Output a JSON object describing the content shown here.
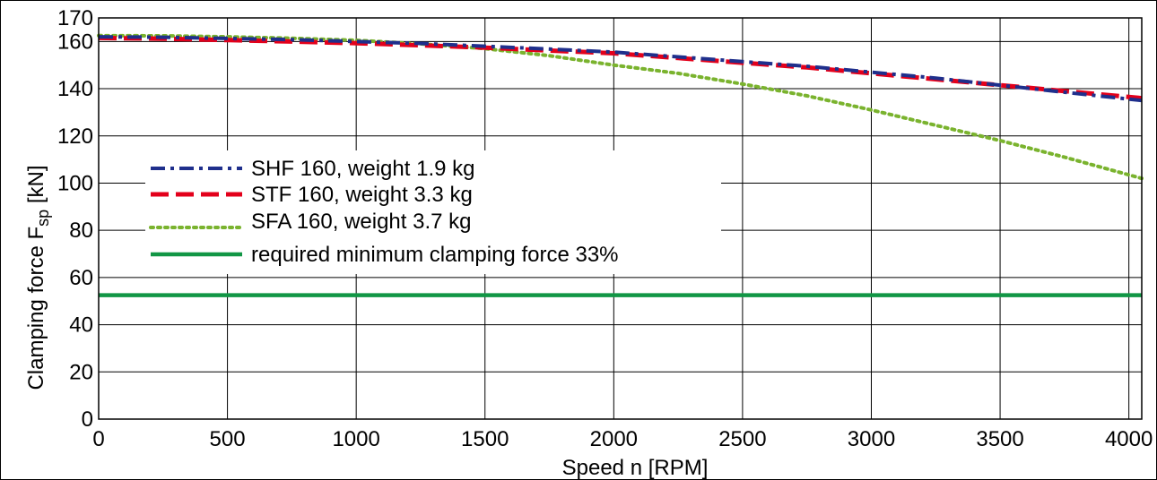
{
  "colors": {
    "shf": "#1f2f8c",
    "stf": "#e3001b",
    "sfa": "#7ab32e",
    "min": "#119645",
    "grid": "#000000"
  },
  "chart_data": {
    "type": "line",
    "xlabel": "Speed n [RPM]",
    "ylabel_main": "Clamping force F",
    "ylabel_sub": "sp",
    "ylabel_unit": " [kN]",
    "xlim": [
      0,
      4050
    ],
    "ylim": [
      0,
      170
    ],
    "xticks": [
      0,
      500,
      1000,
      1500,
      2000,
      2500,
      3000,
      3500,
      4000
    ],
    "yticks": [
      0,
      20,
      40,
      60,
      80,
      100,
      120,
      140,
      160,
      170
    ],
    "grid": true,
    "legend_position": "upper-left",
    "x": [
      0,
      250,
      500,
      750,
      1000,
      1250,
      1500,
      1750,
      2000,
      2250,
      2500,
      2750,
      3000,
      3250,
      3500,
      3750,
      4050
    ],
    "series": [
      {
        "name": "SHF 160, weight 1.9 kg",
        "style": "dashdot",
        "color_key": "shf",
        "values": [
          162,
          161.8,
          161.3,
          160.8,
          160,
          159.2,
          158,
          156.8,
          155.5,
          153.5,
          151.5,
          149.5,
          147,
          144.5,
          141.5,
          138.5,
          135
        ]
      },
      {
        "name": "STF 160, weight 3.3 kg",
        "style": "dashed",
        "color_key": "stf",
        "values": [
          161.5,
          161.2,
          160.6,
          160,
          159.3,
          158.4,
          157.4,
          156.2,
          155,
          153,
          151,
          149,
          146.5,
          144,
          141.5,
          139,
          136
        ]
      },
      {
        "name": "SFA 160, weight 3.7 kg",
        "style": "dotted",
        "color_key": "sfa",
        "values": [
          162.5,
          162.4,
          162,
          161.4,
          160.5,
          159,
          157,
          154,
          150,
          146.5,
          142,
          137,
          131,
          124.5,
          118,
          111,
          102
        ]
      },
      {
        "name": "required minimum clamping force 33%",
        "style": "solid",
        "color_key": "min",
        "values": [
          52.5,
          52.5,
          52.5,
          52.5,
          52.5,
          52.5,
          52.5,
          52.5,
          52.5,
          52.5,
          52.5,
          52.5,
          52.5,
          52.5,
          52.5,
          52.5,
          52.5
        ]
      }
    ]
  }
}
